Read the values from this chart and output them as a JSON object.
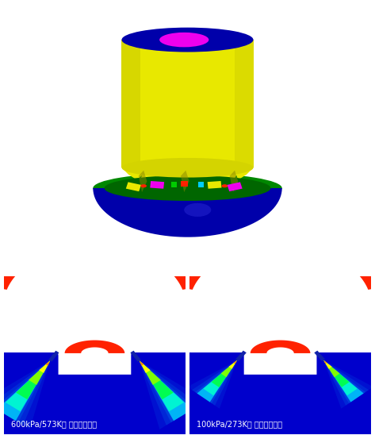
{
  "bg_color": "#ffffff",
  "fig_width": 4.73,
  "fig_height": 5.53,
  "dpi": 100,
  "bottom_left_label": "600kPa/573K： 減圧沸騰なし",
  "bottom_right_label": "100kPa/273K： 減圧沸騰あり",
  "label_color": "#ffffff",
  "label_fontsize": 7.0,
  "injector": {
    "yellow": "#e8e800",
    "dark_yellow": "#c8c800",
    "blue_dark": "#0000aa",
    "blue_navy": "#000090",
    "green": "#008800",
    "magenta": "#ee00ee",
    "red": "#ff2200",
    "cyan": "#00ccff"
  },
  "wall_red": "#ff2200",
  "fluid_blue": "#0000cc",
  "jet_yellow": "#ffff00",
  "jet_green": "#00dd00",
  "jet_cyan": "#00ffff",
  "jet_blue_glow": "#0044ff"
}
